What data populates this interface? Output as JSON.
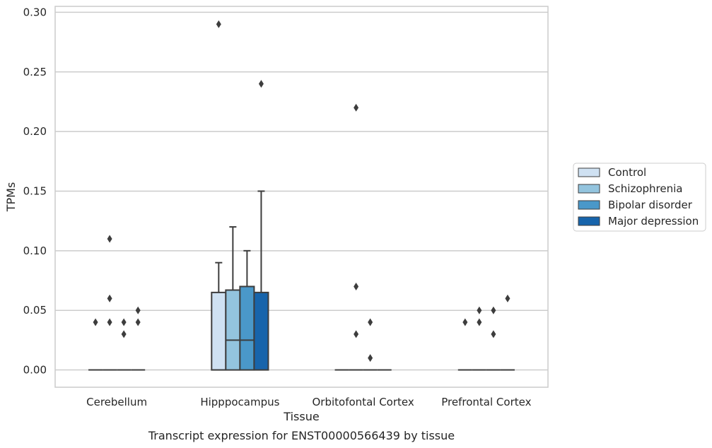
{
  "chart_data": {
    "type": "box",
    "caption": "Transcript expression for ENST00000566439 by tissue",
    "xlabel": "Tissue",
    "ylabel": "TPMs",
    "ylim": [
      -0.0145,
      0.305
    ],
    "yticks": [
      0.0,
      0.05,
      0.1,
      0.15,
      0.2,
      0.25,
      0.3
    ],
    "ytick_labels": [
      "0.00",
      "0.05",
      "0.10",
      "0.15",
      "0.20",
      "0.25",
      "0.30"
    ],
    "grid": true,
    "legend_position": "right",
    "categories": [
      "Cerebellum",
      "Hipppocampus",
      "Orbitofontal Cortex",
      "Prefrontal Cortex"
    ],
    "series": [
      {
        "name": "Control",
        "color": "#cfe1f2",
        "boxes": [
          {
            "q1": 0,
            "median": 0,
            "q3": 0,
            "whislo": 0,
            "whishi": 0,
            "fliers": [
              0.04
            ]
          },
          {
            "q1": 0,
            "median": 0,
            "q3": 0.065,
            "whislo": 0,
            "whishi": 0.09,
            "fliers": [
              0.29
            ]
          },
          {
            "q1": 0,
            "median": 0,
            "q3": 0,
            "whislo": 0,
            "whishi": 0,
            "fliers": []
          },
          {
            "q1": 0,
            "median": 0,
            "q3": 0,
            "whislo": 0,
            "whishi": 0,
            "fliers": [
              0.04
            ]
          }
        ]
      },
      {
        "name": "Schizophrenia",
        "color": "#93c4de",
        "boxes": [
          {
            "q1": 0,
            "median": 0,
            "q3": 0,
            "whislo": 0,
            "whishi": 0,
            "fliers": [
              0.11,
              0.06,
              0.04
            ]
          },
          {
            "q1": 0,
            "median": 0.025,
            "q3": 0.067,
            "whislo": 0,
            "whishi": 0.12,
            "fliers": []
          },
          {
            "q1": 0,
            "median": 0,
            "q3": 0,
            "whislo": 0,
            "whishi": 0,
            "fliers": [
              0.22,
              0.07,
              0.03
            ]
          },
          {
            "q1": 0,
            "median": 0,
            "q3": 0,
            "whislo": 0,
            "whishi": 0,
            "fliers": [
              0.05,
              0.04
            ]
          }
        ]
      },
      {
        "name": "Bipolar disorder",
        "color": "#4a98c9",
        "boxes": [
          {
            "q1": 0,
            "median": 0,
            "q3": 0,
            "whislo": 0,
            "whishi": 0,
            "fliers": [
              0.04,
              0.03
            ]
          },
          {
            "q1": 0,
            "median": 0.025,
            "q3": 0.07,
            "whislo": 0,
            "whishi": 0.1,
            "fliers": []
          },
          {
            "q1": 0,
            "median": 0,
            "q3": 0,
            "whislo": 0,
            "whishi": 0,
            "fliers": [
              0.04,
              0.01
            ]
          },
          {
            "q1": 0,
            "median": 0,
            "q3": 0,
            "whislo": 0,
            "whishi": 0,
            "fliers": [
              0.05,
              0.03
            ]
          }
        ]
      },
      {
        "name": "Major depression",
        "color": "#1764ab",
        "boxes": [
          {
            "q1": 0,
            "median": 0,
            "q3": 0,
            "whislo": 0,
            "whishi": 0,
            "fliers": [
              0.05,
              0.04
            ]
          },
          {
            "q1": 0,
            "median": 0,
            "q3": 0.065,
            "whislo": 0,
            "whishi": 0.15,
            "fliers": [
              0.24
            ]
          },
          {
            "q1": 0,
            "median": 0,
            "q3": 0,
            "whislo": 0,
            "whishi": 0,
            "fliers": []
          },
          {
            "q1": 0,
            "median": 0,
            "q3": 0,
            "whislo": 0,
            "whishi": 0,
            "fliers": [
              0.06
            ]
          }
        ]
      }
    ]
  }
}
